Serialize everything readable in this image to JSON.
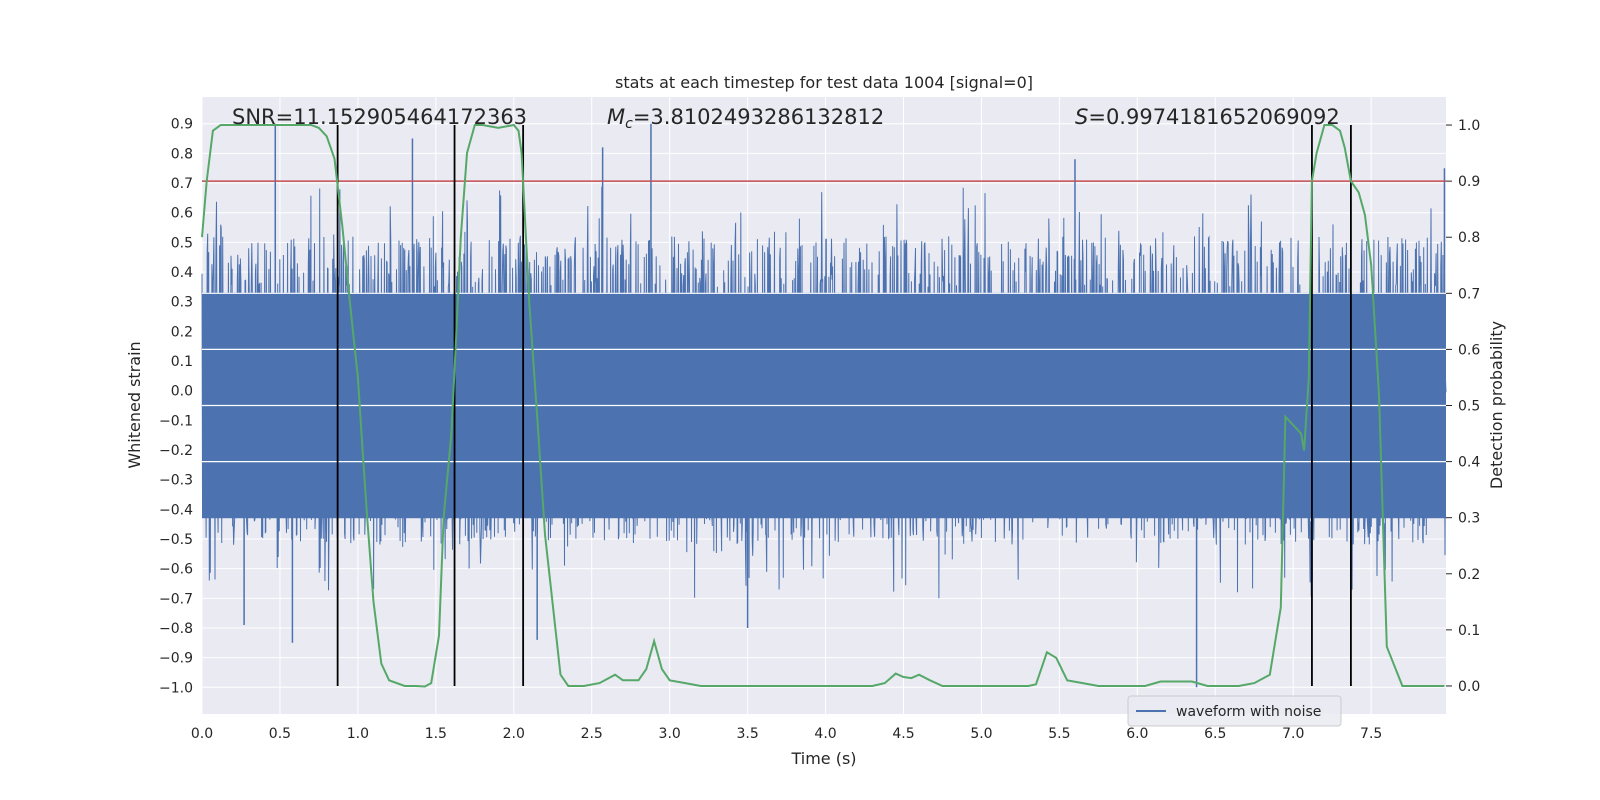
{
  "chart_data": {
    "type": "line",
    "title": "stats at each timestep for test data 1004 [signal=0]",
    "xlabel": "Time (s)",
    "ylabel_left": "Whitened strain",
    "ylabel_right": "Detection probability",
    "xlim": [
      0.0,
      7.98
    ],
    "ylim_left": [
      -1.09,
      0.99
    ],
    "ylim_right": [
      -0.05,
      1.05
    ],
    "x_ticks": [
      "0.0",
      "0.5",
      "1.0",
      "1.5",
      "2.0",
      "2.5",
      "3.0",
      "3.5",
      "4.0",
      "4.5",
      "5.0",
      "5.5",
      "6.0",
      "6.5",
      "7.0",
      "7.5"
    ],
    "x_tick_values": [
      0.0,
      0.5,
      1.0,
      1.5,
      2.0,
      2.5,
      3.0,
      3.5,
      4.0,
      4.5,
      5.0,
      5.5,
      6.0,
      6.5,
      7.0,
      7.5
    ],
    "y_left_ticks": [
      "0.9",
      "0.8",
      "0.7",
      "0.6",
      "0.5",
      "0.4",
      "0.3",
      "0.2",
      "0.1",
      "0.0",
      "−0.1",
      "−0.2",
      "−0.3",
      "−0.4",
      "−0.5",
      "−0.6",
      "−0.7",
      "−0.8",
      "−0.9",
      "−1.0"
    ],
    "y_left_tick_values": [
      0.9,
      0.8,
      0.7,
      0.6,
      0.5,
      0.4,
      0.3,
      0.2,
      0.1,
      0.0,
      -0.1,
      -0.2,
      -0.3,
      -0.4,
      -0.5,
      -0.6,
      -0.7,
      -0.8,
      -0.9,
      -1.0
    ],
    "y_right_ticks": [
      "1.0",
      "0.9",
      "0.8",
      "0.7",
      "0.6",
      "0.5",
      "0.4",
      "0.3",
      "0.2",
      "0.1",
      "0.0"
    ],
    "y_right_tick_values": [
      1.0,
      0.9,
      0.8,
      0.7,
      0.6,
      0.5,
      0.4,
      0.3,
      0.2,
      0.1,
      0.0
    ],
    "annotations": {
      "snr": "SNR=11.152905464172363",
      "mc_symbol": "M",
      "mc_sub": "c",
      "mc_value": "=3.8102493286132812",
      "s_symbol": "S",
      "s_value": "=0.9974181652069092"
    },
    "legend": {
      "label": "waveform with noise",
      "placement": "bottom-right"
    },
    "threshold": {
      "value": 0.9,
      "axis": "right",
      "color": "#c44e52"
    },
    "vertical_markers": [
      0.87,
      1.62,
      2.06,
      7.12,
      7.37
    ],
    "series": [
      {
        "name": "waveform with noise",
        "axis": "left",
        "color": "#4c72b0",
        "kind": "noise",
        "core_amplitude": 0.5,
        "typical_peak": [
          0.4,
          0.6
        ],
        "extreme_peaks": [
          {
            "x": 0.47,
            "y": 0.9
          },
          {
            "x": 1.35,
            "y": 0.85
          },
          {
            "x": 2.88,
            "y": 0.9
          },
          {
            "x": 2.57,
            "y": 0.82
          },
          {
            "x": 5.6,
            "y": 0.78
          },
          {
            "x": 6.38,
            "y": -1.0
          },
          {
            "x": 0.58,
            "y": -0.85
          },
          {
            "x": 0.27,
            "y": -0.79
          },
          {
            "x": 3.5,
            "y": -0.8
          },
          {
            "x": 2.15,
            "y": -0.84
          },
          {
            "x": 7.97,
            "y": 0.75
          }
        ]
      },
      {
        "name": "",
        "axis": "right",
        "color": "#55a868",
        "kind": "line",
        "x": [
          0.0,
          0.03,
          0.07,
          0.12,
          0.2,
          0.3,
          0.4,
          0.5,
          0.6,
          0.7,
          0.75,
          0.8,
          0.85,
          0.9,
          0.95,
          1.0,
          1.03,
          1.06,
          1.1,
          1.15,
          1.2,
          1.3,
          1.37,
          1.43,
          1.47,
          1.52,
          1.55,
          1.6,
          1.63,
          1.66,
          1.7,
          1.75,
          1.8,
          1.9,
          2.0,
          2.03,
          2.05,
          2.1,
          2.15,
          2.2,
          2.3,
          2.35,
          2.45,
          2.55,
          2.65,
          2.7,
          2.8,
          2.85,
          2.9,
          2.95,
          3.0,
          3.1,
          3.2,
          3.3,
          3.4,
          3.5,
          3.6,
          3.7,
          3.8,
          3.9,
          4.0,
          4.1,
          4.2,
          4.3,
          4.38,
          4.45,
          4.5,
          4.55,
          4.6,
          4.67,
          4.75,
          4.85,
          4.95,
          5.0,
          5.1,
          5.2,
          5.3,
          5.35,
          5.42,
          5.48,
          5.55,
          5.65,
          5.75,
          5.85,
          5.95,
          6.05,
          6.15,
          6.25,
          6.35,
          6.45,
          6.55,
          6.65,
          6.75,
          6.85,
          6.92,
          6.95,
          7.05,
          7.07,
          7.1,
          7.12,
          7.15,
          7.2,
          7.25,
          7.3,
          7.33,
          7.37,
          7.42,
          7.46,
          7.5,
          7.55,
          7.6,
          7.7,
          7.85,
          7.97
        ],
        "y": [
          0.8,
          0.9,
          0.99,
          1.0,
          1.0,
          1.0,
          1.0,
          1.0,
          1.0,
          1.0,
          0.995,
          0.98,
          0.94,
          0.82,
          0.68,
          0.55,
          0.42,
          0.3,
          0.15,
          0.04,
          0.01,
          0.0,
          0.0,
          -0.001,
          0.005,
          0.09,
          0.3,
          0.45,
          0.62,
          0.8,
          0.95,
          1.0,
          1.0,
          0.995,
          1.0,
          0.99,
          0.95,
          0.68,
          0.48,
          0.27,
          0.02,
          0.0,
          0.0,
          0.005,
          0.02,
          0.01,
          0.01,
          0.03,
          0.08,
          0.03,
          0.01,
          0.005,
          0.0,
          0.0,
          0.0,
          0.0,
          0.0,
          0.0,
          0.0,
          0.0,
          0.0,
          0.0,
          0.0,
          0.0,
          0.005,
          0.022,
          0.016,
          0.014,
          0.02,
          0.01,
          0.0,
          0.0,
          0.0,
          0.0,
          0.0,
          0.0,
          0.0,
          0.003,
          0.06,
          0.05,
          0.01,
          0.005,
          0.0,
          0.0,
          0.0,
          0.0,
          0.008,
          0.008,
          0.008,
          0.0,
          0.0,
          0.0,
          0.005,
          0.02,
          0.14,
          0.48,
          0.45,
          0.42,
          0.55,
          0.9,
          0.95,
          1.0,
          1.0,
          0.99,
          0.96,
          0.9,
          0.88,
          0.84,
          0.75,
          0.52,
          0.07,
          0.0,
          0.0,
          0.0
        ]
      }
    ]
  }
}
